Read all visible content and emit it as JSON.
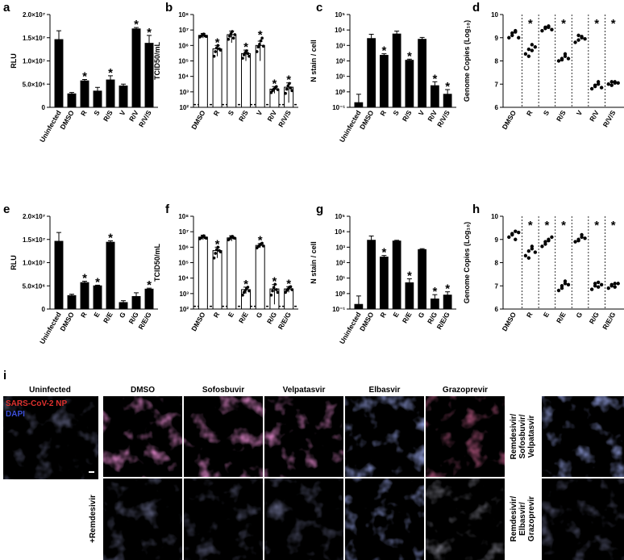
{
  "chart_data": [
    {
      "panel": "a",
      "type": "bar",
      "ylabel": "RLU",
      "scale": "linear",
      "ylim": [
        0,
        20000000
      ],
      "ticks": [
        "0",
        "5.0×10⁶",
        "1.0×10⁷",
        "1.5×10⁷",
        "2.0×10⁷"
      ],
      "categories": [
        "Uninfected",
        "DMSO",
        "R",
        "S",
        "R/S",
        "V",
        "R/V",
        "R/V/S"
      ],
      "values": [
        14600000,
        2900000,
        5700000,
        3500000,
        5900000,
        4600000,
        16900000,
        13800000
      ],
      "errors": [
        1900000,
        300000,
        300000,
        800000,
        900000,
        400000,
        300000,
        1700000
      ],
      "significant": [
        false,
        false,
        true,
        false,
        true,
        false,
        true,
        true
      ]
    },
    {
      "panel": "b",
      "type": "bar",
      "ylabel": "TCID50/mL",
      "scale": "log",
      "ylim": [
        100,
        100000000
      ],
      "ticks": [
        "10²",
        "10³",
        "10⁴",
        "10⁵",
        "10⁶",
        "10⁷",
        "10⁸"
      ],
      "threshold": 150,
      "categories": [
        "DMSO",
        "R",
        "S",
        "R/S",
        "V",
        "R/V",
        "R/V/S"
      ],
      "values": [
        4500000,
        600000,
        5000000,
        300000,
        1000000,
        1500,
        2000
      ],
      "errors": [
        1500000,
        400000,
        3500000,
        200000,
        900000,
        700,
        1800
      ],
      "significant": [
        false,
        true,
        false,
        true,
        true,
        true,
        true
      ],
      "points": [
        [
          3500000,
          4000000,
          5000000,
          5500000,
          4200000,
          3800000
        ],
        [
          200000,
          400000,
          700000,
          1000000,
          600000,
          500000
        ],
        [
          2500000,
          4000000,
          6000000,
          8000000,
          3000000,
          5000000
        ],
        [
          150000,
          250000,
          350000,
          450000,
          300000,
          200000
        ],
        [
          400000,
          800000,
          1200000,
          2000000,
          3000000,
          900000
        ],
        [
          900,
          1200,
          1500,
          1800,
          2200,
          1400
        ],
        [
          800,
          1500,
          2500,
          3500,
          1800,
          1200
        ]
      ]
    },
    {
      "panel": "c",
      "type": "bar",
      "ylabel": "N stain / cell",
      "scale": "log",
      "ylim": [
        0.1,
        100000
      ],
      "ticks": [
        "10⁻¹",
        "10⁰",
        "10¹",
        "10²",
        "10³",
        "10⁴",
        "10⁵"
      ],
      "categories": [
        "Uninfected",
        "DMSO",
        "R",
        "S",
        "R/S",
        "V",
        "R/V",
        "R/V/S"
      ],
      "values": [
        0.2,
        2800,
        230,
        5500,
        110,
        2500,
        2.5,
        0.7
      ],
      "errors": [
        0.5,
        2500,
        60,
        3000,
        20,
        800,
        2,
        0.7
      ],
      "significant": [
        false,
        false,
        true,
        false,
        true,
        false,
        true,
        true
      ]
    },
    {
      "panel": "d",
      "type": "scatter",
      "ylabel": "Genome Copies (Log₁₀)",
      "scale": "linear",
      "ylim": [
        6,
        10
      ],
      "ticks": [
        "6",
        "7",
        "8",
        "9",
        "10"
      ],
      "categories": [
        "DMSO",
        "R",
        "S",
        "R/S",
        "V",
        "R/V",
        "R/V/S"
      ],
      "points": [
        [
          9.0,
          9.2,
          9.3,
          9.1,
          9.25,
          9.0
        ],
        [
          8.3,
          8.5,
          8.7,
          8.2,
          8.45,
          8.6
        ],
        [
          9.3,
          9.45,
          9.5,
          9.4,
          9.45,
          9.35
        ],
        [
          8.0,
          8.1,
          8.2,
          8.05,
          8.3,
          8.1
        ],
        [
          8.8,
          9.1,
          9.0,
          8.9,
          9.05,
          8.95
        ],
        [
          6.8,
          6.95,
          7.1,
          6.9,
          7.0,
          6.85
        ],
        [
          7.0,
          7.1,
          7.05,
          6.95,
          7.1,
          7.05
        ]
      ],
      "significant": [
        false,
        true,
        false,
        true,
        false,
        true,
        true
      ]
    },
    {
      "panel": "e",
      "type": "bar",
      "ylabel": "RLU",
      "scale": "linear",
      "ylim": [
        0,
        20000000
      ],
      "ticks": [
        "0",
        "5.0×10⁶",
        "1.0×10⁷",
        "1.5×10⁷",
        "2.0×10⁷"
      ],
      "categories": [
        "Uninfected",
        "DMSO",
        "R",
        "E",
        "R/E",
        "G",
        "R/G",
        "R/E/G"
      ],
      "values": [
        14600000,
        2900000,
        5700000,
        5000000,
        14400000,
        1400000,
        2700000,
        4300000
      ],
      "errors": [
        1900000,
        300000,
        300000,
        150000,
        300000,
        400000,
        800000,
        200000
      ],
      "significant": [
        false,
        false,
        true,
        true,
        true,
        false,
        false,
        true
      ]
    },
    {
      "panel": "f",
      "type": "bar",
      "ylabel": "TCID50/mL",
      "scale": "log",
      "ylim": [
        100,
        100000000
      ],
      "ticks": [
        "10²",
        "10³",
        "10⁴",
        "10⁵",
        "10⁶",
        "10⁷",
        "10⁸"
      ],
      "threshold": 150,
      "categories": [
        "DMSO",
        "R",
        "E",
        "R/E",
        "G",
        "R/G",
        "R/E/G"
      ],
      "values": [
        4500000,
        600000,
        4000000,
        1800,
        1300000,
        2000,
        2000
      ],
      "errors": [
        1500000,
        400000,
        1500000,
        800,
        400000,
        1800,
        800
      ],
      "significant": [
        false,
        true,
        false,
        true,
        true,
        true,
        true
      ],
      "points": [
        [
          3500000,
          4000000,
          5000000,
          5500000,
          4200000,
          3800000
        ],
        [
          200000,
          400000,
          700000,
          1000000,
          600000,
          500000
        ],
        [
          3000000,
          3500000,
          4500000,
          5000000,
          4000000,
          3800000
        ],
        [
          800,
          1200,
          1600,
          2200,
          2600,
          1500
        ],
        [
          900000,
          1100000,
          1300000,
          1600000,
          1800000,
          1200000
        ],
        [
          800,
          1500,
          2500,
          4000,
          1800,
          1200
        ],
        [
          1200,
          1600,
          2000,
          2600,
          2800,
          1800
        ]
      ]
    },
    {
      "panel": "g",
      "type": "bar",
      "ylabel": "N stain / cell",
      "scale": "log",
      "ylim": [
        0.1,
        100000
      ],
      "ticks": [
        "10⁻¹",
        "10⁰",
        "10¹",
        "10²",
        "10³",
        "10⁴",
        "10⁵"
      ],
      "categories": [
        "Uninfected",
        "DMSO",
        "R",
        "E",
        "R/E",
        "G",
        "R/G",
        "R/E/G"
      ],
      "values": [
        0.2,
        2800,
        230,
        2500,
        5,
        700,
        0.45,
        0.8
      ],
      "errors": [
        0.5,
        2500,
        60,
        300,
        4,
        100,
        0.4,
        0.5
      ],
      "significant": [
        false,
        false,
        true,
        false,
        true,
        false,
        true,
        true
      ]
    },
    {
      "panel": "h",
      "type": "scatter",
      "ylabel": "Genome Copies (Log₁₀)",
      "scale": "linear",
      "ylim": [
        6,
        10
      ],
      "ticks": [
        "6",
        "7",
        "8",
        "9",
        "10"
      ],
      "categories": [
        "DMSO",
        "R",
        "E",
        "R/E",
        "G",
        "R/G",
        "R/E/G"
      ],
      "points": [
        [
          9.1,
          9.25,
          9.35,
          9.2,
          9.0,
          9.3
        ],
        [
          8.3,
          8.5,
          8.7,
          8.2,
          8.6,
          8.45
        ],
        [
          8.7,
          8.9,
          9.0,
          8.8,
          8.95,
          9.1
        ],
        [
          6.8,
          7.0,
          7.2,
          6.9,
          7.1,
          7.05
        ],
        [
          8.9,
          9.0,
          9.1,
          8.95,
          9.2,
          9.05
        ],
        [
          6.85,
          7.0,
          7.15,
          7.1,
          6.95,
          7.05
        ],
        [
          6.9,
          7.0,
          7.1,
          7.05,
          6.95,
          7.1
        ]
      ],
      "significant": [
        false,
        true,
        true,
        true,
        false,
        true,
        true
      ]
    }
  ],
  "microscopy": {
    "panel": "i",
    "uninfected": "Uninfected",
    "legend_np": "SARS-CoV-2 NP",
    "legend_dapi": "DAPI",
    "row_label": "+Remdesivir",
    "columns": [
      "DMSO",
      "Sofosbuvir",
      "Velpatasvir",
      "Elbasvir",
      "Grazoprevir"
    ],
    "combo_top": "Remdesivir/ Sofosbuvir/ Velpatasvir",
    "combo_bottom": "Remdesivir/ Elbasvir/ Grazoprevir",
    "colors": {
      "np": "#e0312e",
      "dapi": "#3c4fd8",
      "background": "#000000"
    }
  }
}
